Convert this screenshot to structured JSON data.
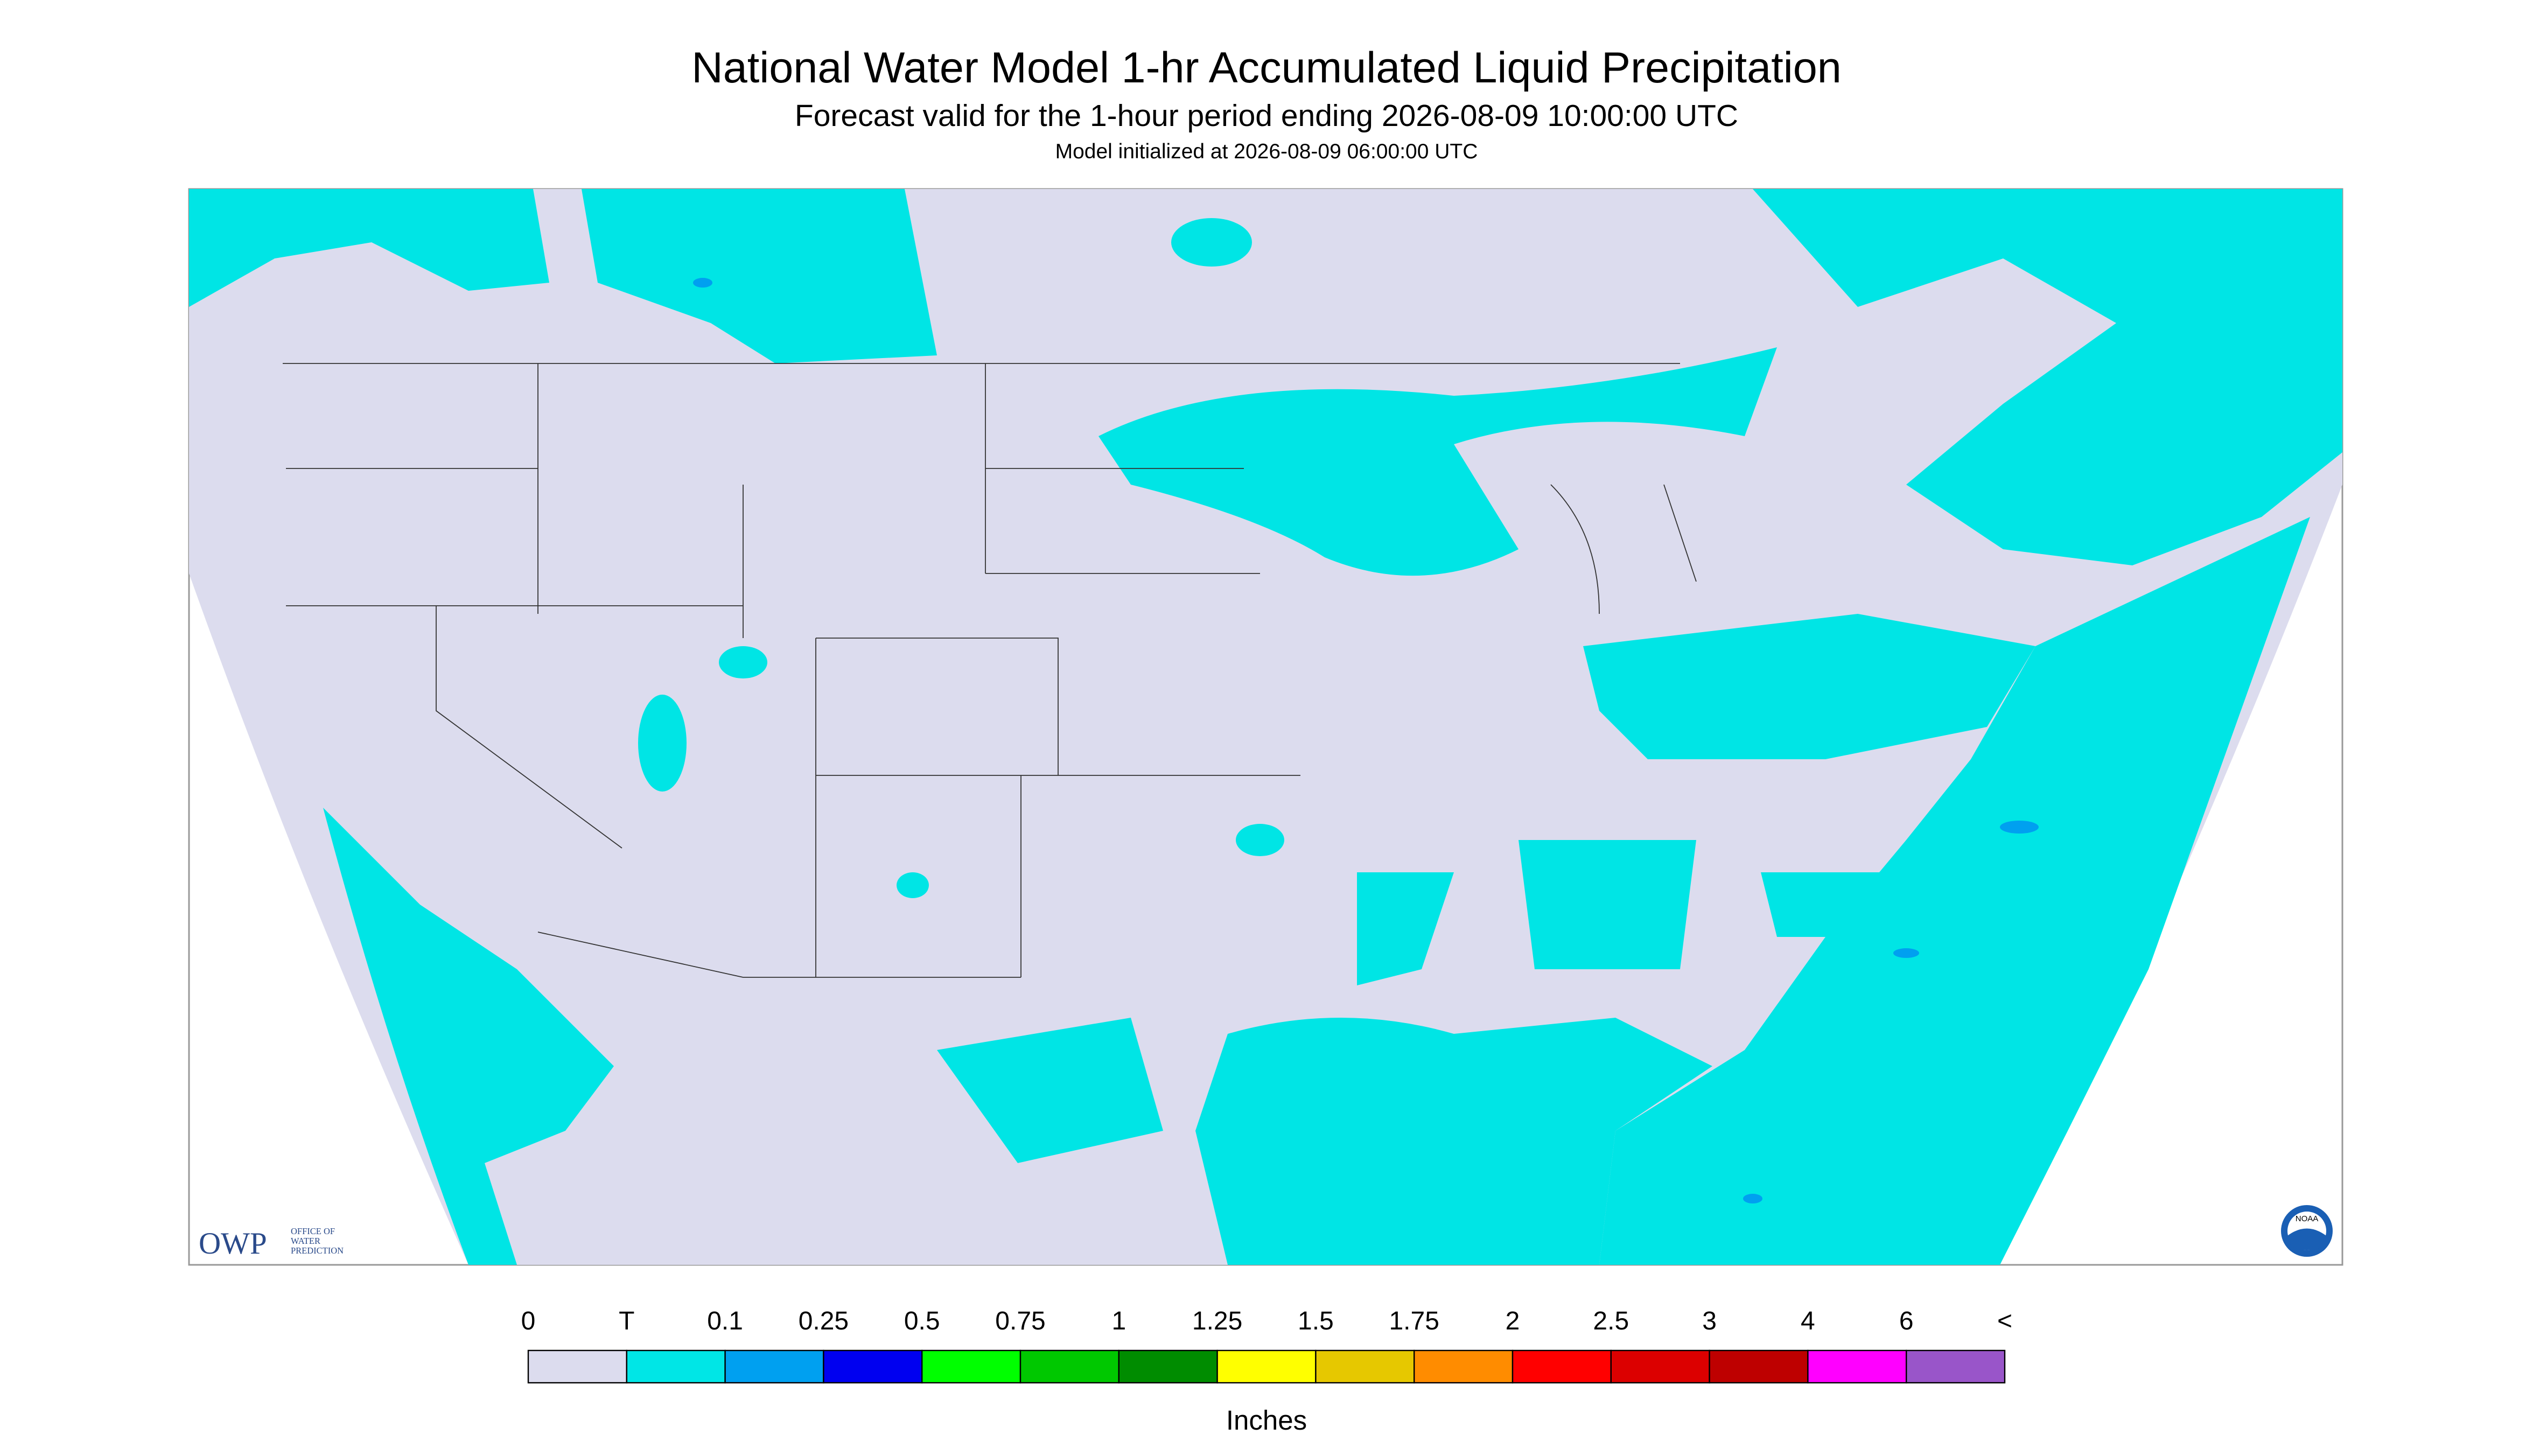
{
  "header": {
    "title": "National Water Model 1-hr Accumulated Liquid Precipitation",
    "subtitle": "Forecast valid for the 1-hour period ending 2026-08-09 10:00:00 UTC",
    "note": "Model initialized at 2026-08-09 06:00:00 UTC"
  },
  "logo": {
    "owp": "OWP",
    "owp_text": [
      "OFFICE OF",
      "WATER",
      "PREDICTION"
    ],
    "noaa": "NOAA"
  },
  "legend": {
    "labels": [
      "0",
      "T",
      "0.1",
      "0.25",
      "0.5",
      "0.75",
      "1",
      "1.25",
      "1.5",
      "1.75",
      "2",
      "2.5",
      "3",
      "4",
      "6",
      "<"
    ],
    "colors": [
      "#dcdcee",
      "#00e6e6",
      "#00a0f0",
      "#0000f0",
      "#00ff00",
      "#00c800",
      "#008c00",
      "#ffff00",
      "#e6c800",
      "#ff8c00",
      "#ff0000",
      "#dc0000",
      "#be0000",
      "#ff00ff",
      "#9955c9"
    ],
    "unit": "Inches"
  }
}
